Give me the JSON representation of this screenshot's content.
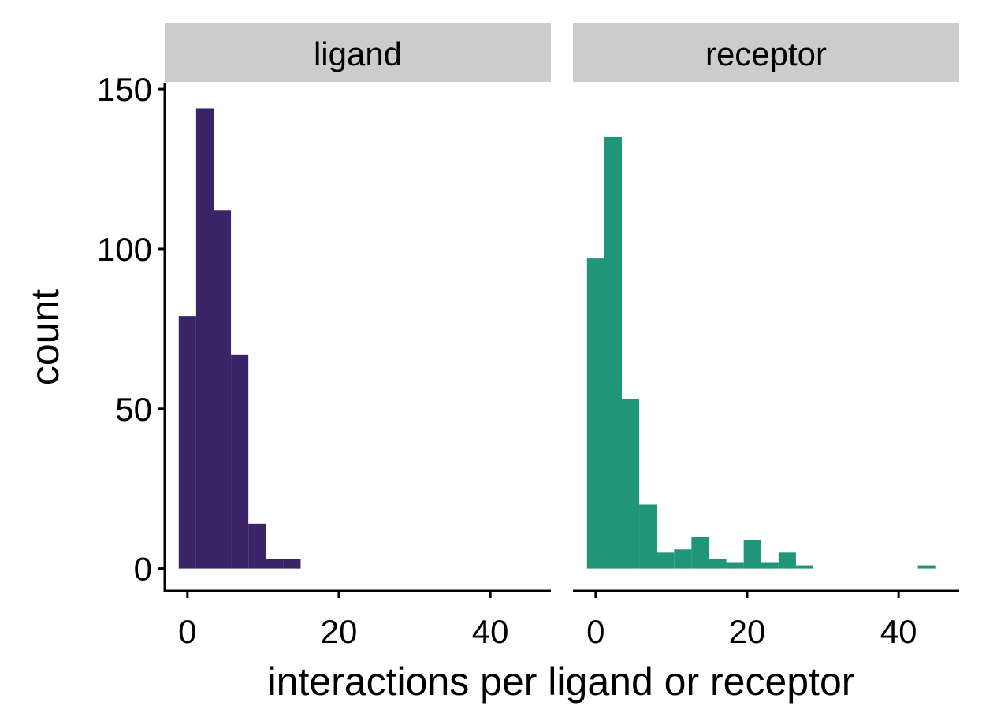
{
  "chart_data": {
    "type": "bar",
    "title": "",
    "xlabel": "interactions per ligand or receptor",
    "ylabel": "count",
    "xlim": [
      -3,
      48
    ],
    "ylim": [
      -7,
      152
    ],
    "xticks": [
      0,
      20,
      40
    ],
    "yticks": [
      0,
      50,
      100,
      150
    ],
    "bin_width": 2.3,
    "grid": false,
    "legend": "none",
    "panels": [
      {
        "label": "ligand",
        "color": "#3A2366",
        "bins": [
          {
            "x0": -1.15,
            "x1": 1.15,
            "count": 79
          },
          {
            "x0": 1.15,
            "x1": 3.45,
            "count": 144
          },
          {
            "x0": 3.45,
            "x1": 5.75,
            "count": 112
          },
          {
            "x0": 5.75,
            "x1": 8.05,
            "count": 67
          },
          {
            "x0": 8.05,
            "x1": 10.35,
            "count": 14
          },
          {
            "x0": 10.35,
            "x1": 12.65,
            "count": 3
          },
          {
            "x0": 12.65,
            "x1": 14.95,
            "count": 3
          }
        ]
      },
      {
        "label": "receptor",
        "color": "#20957A",
        "bins": [
          {
            "x0": -1.15,
            "x1": 1.15,
            "count": 97
          },
          {
            "x0": 1.15,
            "x1": 3.45,
            "count": 135
          },
          {
            "x0": 3.45,
            "x1": 5.75,
            "count": 53
          },
          {
            "x0": 5.75,
            "x1": 8.05,
            "count": 20
          },
          {
            "x0": 8.05,
            "x1": 10.35,
            "count": 5
          },
          {
            "x0": 10.35,
            "x1": 12.65,
            "count": 6
          },
          {
            "x0": 12.65,
            "x1": 14.95,
            "count": 10
          },
          {
            "x0": 14.95,
            "x1": 17.25,
            "count": 3
          },
          {
            "x0": 17.25,
            "x1": 19.55,
            "count": 2
          },
          {
            "x0": 19.55,
            "x1": 21.85,
            "count": 9
          },
          {
            "x0": 21.85,
            "x1": 24.15,
            "count": 2
          },
          {
            "x0": 24.15,
            "x1": 26.45,
            "count": 5
          },
          {
            "x0": 26.45,
            "x1": 28.75,
            "count": 1
          },
          {
            "x0": 42.55,
            "x1": 44.85,
            "count": 1
          }
        ]
      }
    ]
  }
}
